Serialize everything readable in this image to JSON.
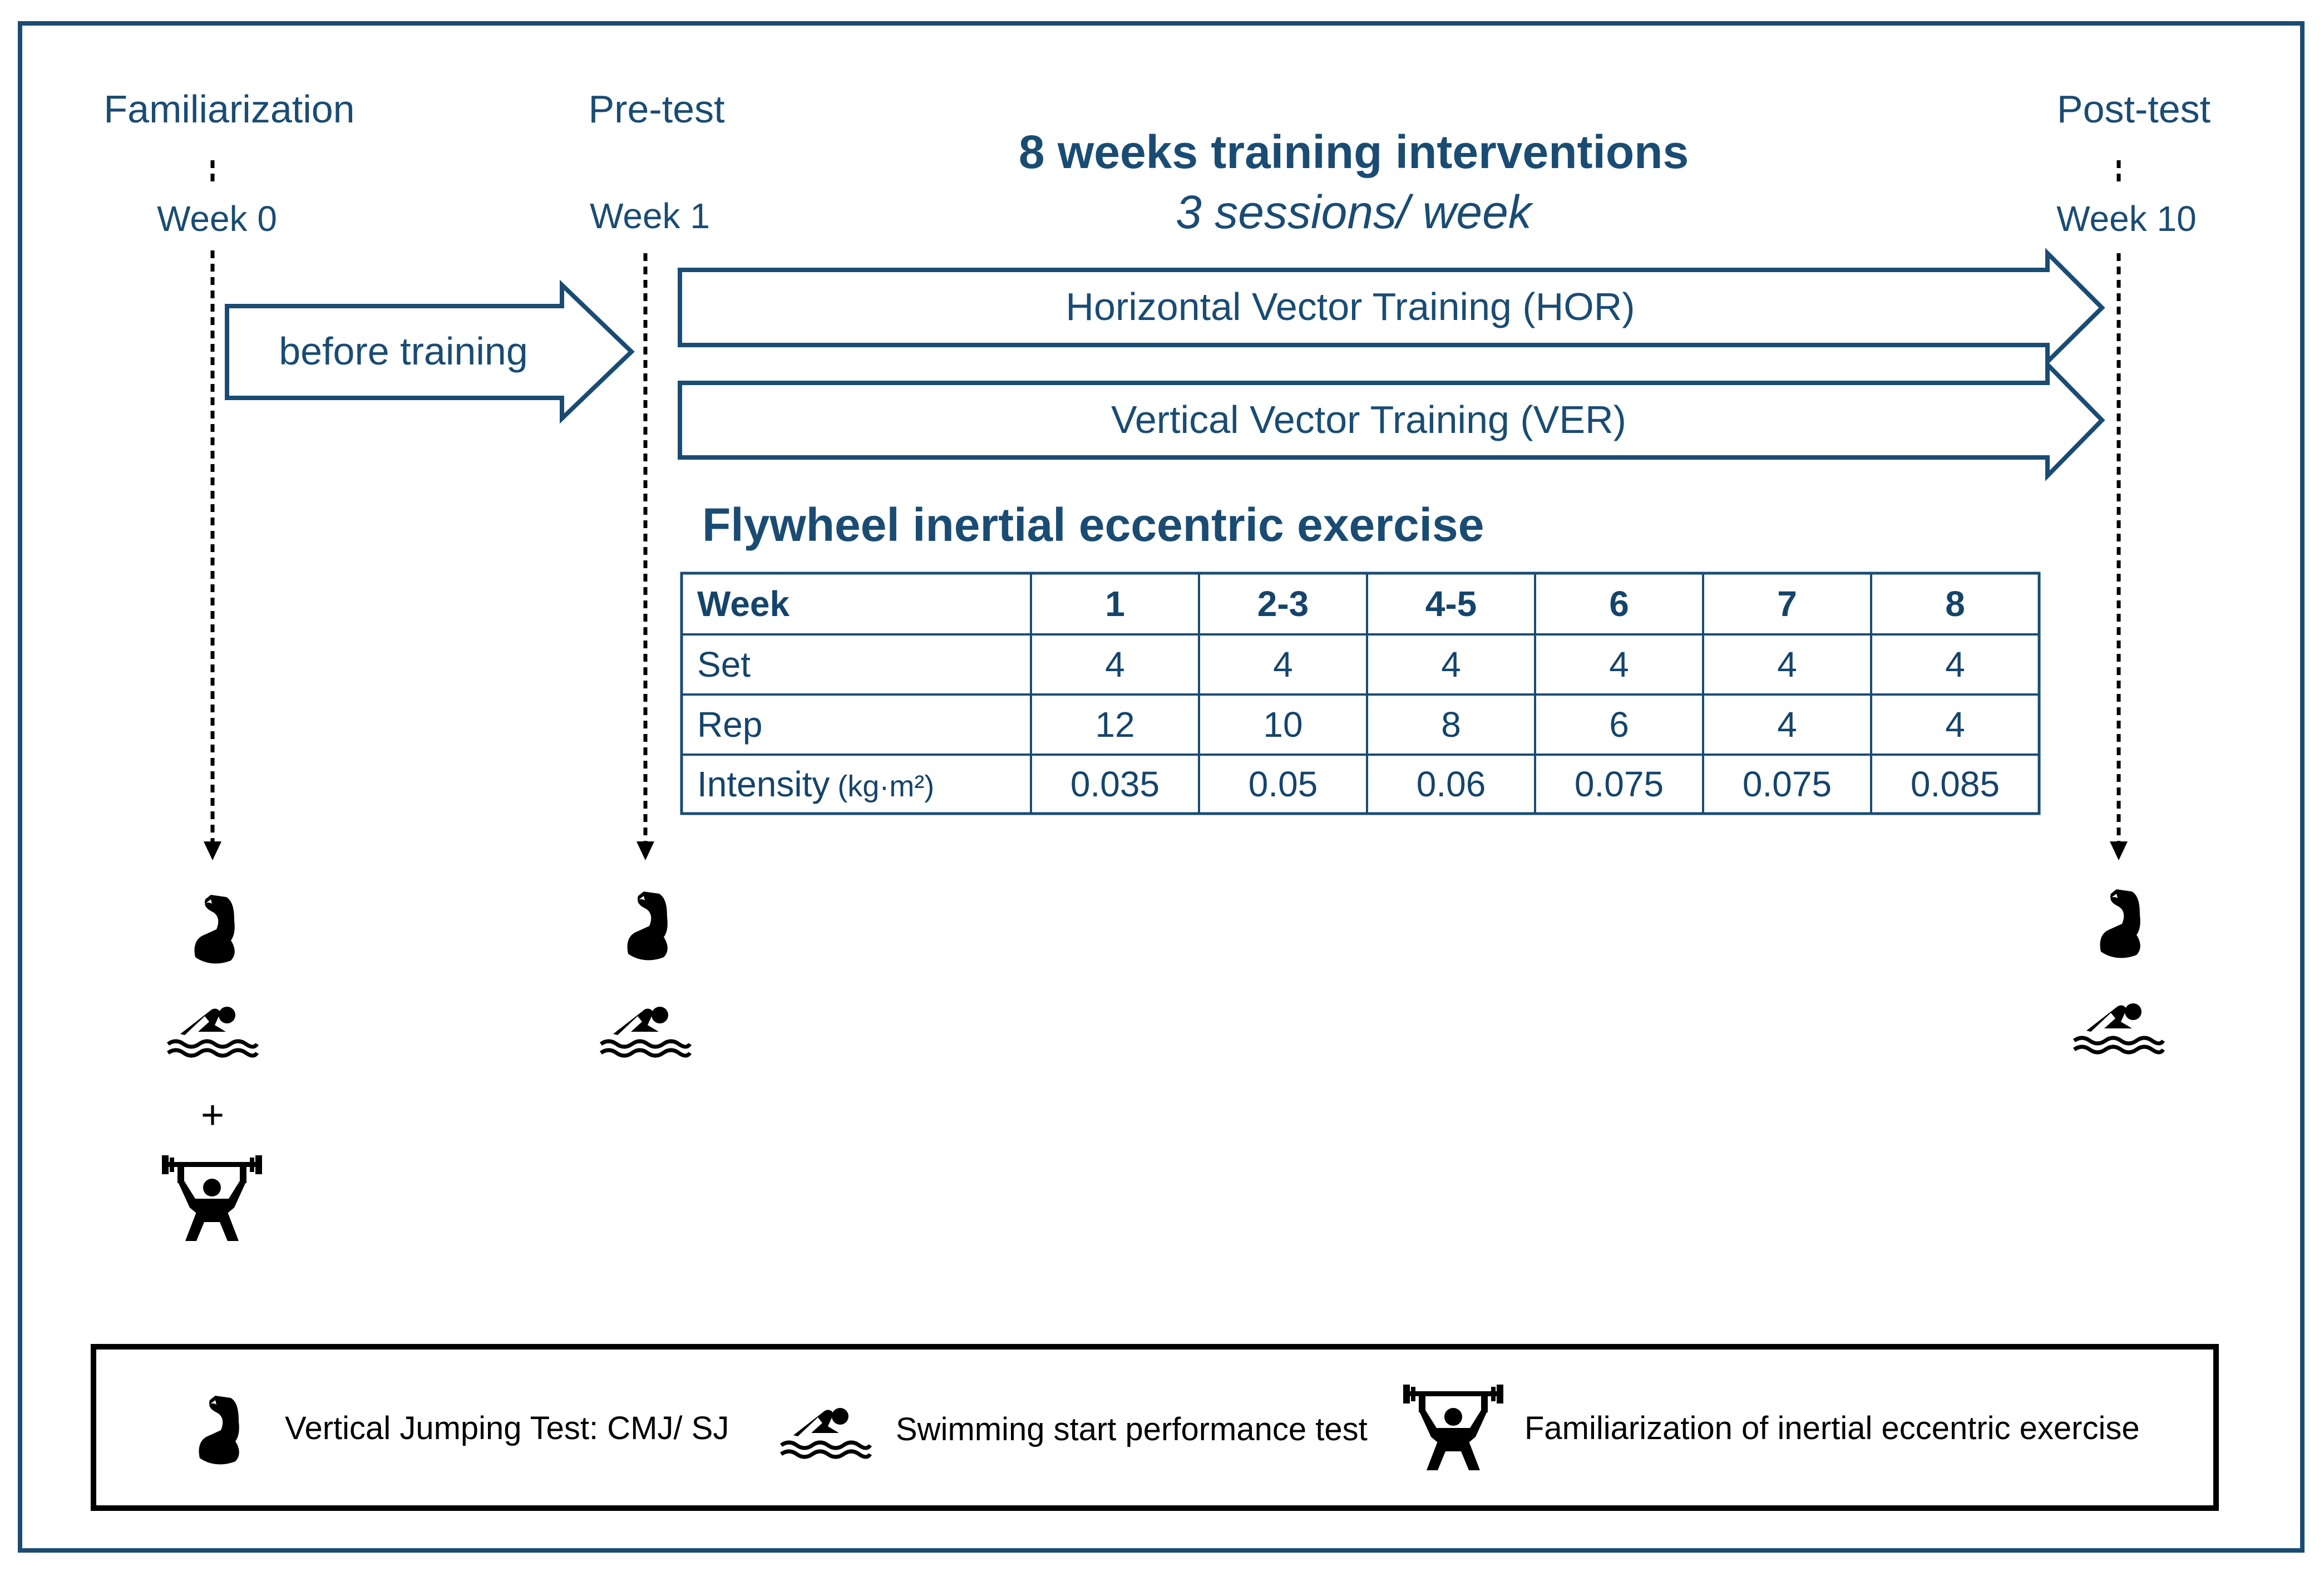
{
  "colors": {
    "frame": "#1a4c73",
    "text": "#1a4c73",
    "icons": "#000000",
    "background": "#ffffff"
  },
  "timeline": {
    "familiarization": {
      "label": "Familiarization",
      "week": "Week 0"
    },
    "pretest": {
      "label": "Pre-test",
      "week": "Week 1"
    },
    "posttest": {
      "label": "Post-test",
      "week": "Week 10"
    }
  },
  "intervention": {
    "title": "8 weeks training interventions",
    "subtitle": "3 sessions/ week"
  },
  "arrows": {
    "before": "before training",
    "hor": "Horizontal Vector Training (HOR)",
    "ver": "Vertical Vector Training (VER)"
  },
  "exercise": {
    "title": "Flywheel inertial eccentric exercise",
    "header": [
      "Week",
      "1",
      "2-3",
      "4-5",
      "6",
      "7",
      "8"
    ],
    "rows": [
      [
        "Set",
        "4",
        "4",
        "4",
        "4",
        "4",
        "4"
      ],
      [
        "Rep",
        "12",
        "10",
        "8",
        "6",
        "4",
        "4"
      ],
      [
        "Intensity",
        "0.035",
        "0.05",
        "0.06",
        "0.075",
        "0.075",
        "0.085"
      ]
    ],
    "intensity_unit": "(kg·m²)"
  },
  "plus_sign": "+",
  "icons": {
    "vertical_jump": "flexed-bicep-icon",
    "swim_start": "swimmer-icon",
    "familiarization": "weightlifter-icon"
  },
  "legend": {
    "jump": "Vertical Jumping Test: CMJ/ SJ",
    "swim": "Swimming start performance test",
    "lift": "Familiarization of inertial eccentric exercise"
  }
}
